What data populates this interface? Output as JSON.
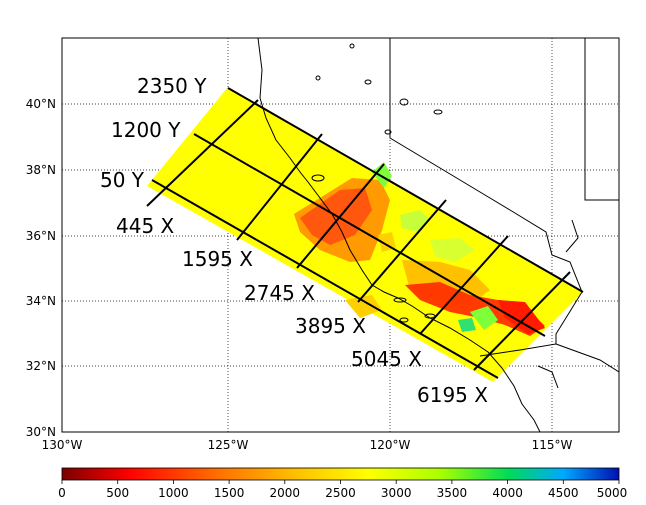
{
  "map": {
    "lon_labels": [
      "130°W",
      "125°W",
      "120°W",
      "115°W"
    ],
    "lat_labels": [
      "40°N",
      "38°N",
      "36°N",
      "34°N",
      "32°N",
      "30°N"
    ],
    "y_line_labels": [
      "2350 Y",
      "1200 Y",
      "50 Y"
    ],
    "x_line_labels": [
      "445 X",
      "1595 X",
      "2745 X",
      "3895 X",
      "5045 X",
      "6195 X"
    ],
    "colors": {
      "background_fill": "#ffff00",
      "grid_lines": "#000000",
      "coast": "#000000"
    }
  },
  "colorbar": {
    "ticks": [
      "0",
      "500",
      "1000",
      "1500",
      "2000",
      "2500",
      "3000",
      "3500",
      "4000",
      "4500",
      "5000"
    ],
    "colormap": "jet_r",
    "stops": [
      "#8b0000",
      "#ff0000",
      "#ff6a00",
      "#ffb400",
      "#ffff00",
      "#a6ff00",
      "#00d455",
      "#00aaff",
      "#0000cc"
    ]
  }
}
